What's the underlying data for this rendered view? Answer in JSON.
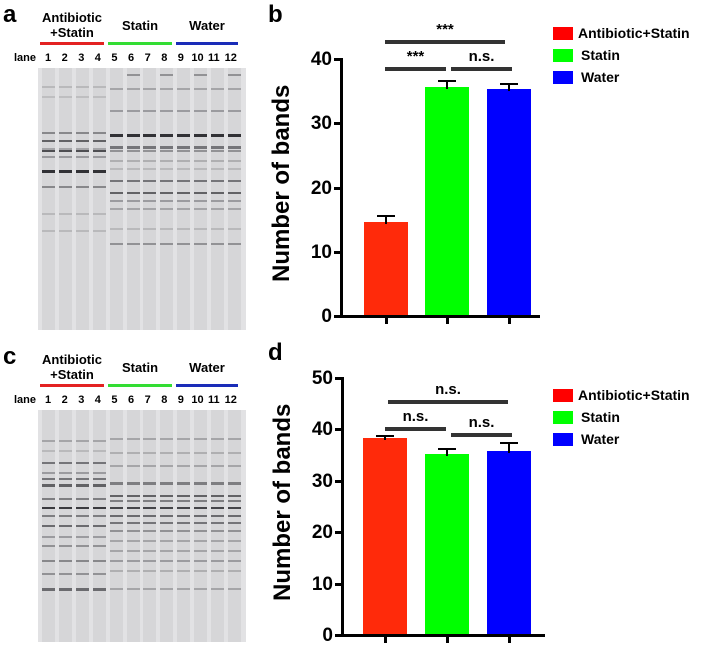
{
  "panels": {
    "a": {
      "letter": "a"
    },
    "b": {
      "letter": "b"
    },
    "c": {
      "letter": "c"
    },
    "d": {
      "letter": "d"
    }
  },
  "gel": {
    "lane_prefix": "lane",
    "groups": [
      {
        "label_line1": "Antibiotic",
        "label_line2": "+Statin",
        "color": "#e32222"
      },
      {
        "label_line1": "",
        "label_line2": "Statin",
        "color": "#33dd33"
      },
      {
        "label_line1": "",
        "label_line2": "Water",
        "color": "#1a2cb8"
      }
    ],
    "lanes": [
      "1",
      "2",
      "3",
      "4",
      "5",
      "6",
      "7",
      "8",
      "9",
      "10",
      "11",
      "12"
    ]
  },
  "legend": {
    "items": [
      {
        "label": "Antibiotic+Statin",
        "color": "#ff0000"
      },
      {
        "label": "Statin",
        "color": "#00ff00"
      },
      {
        "label": "Water",
        "color": "#0000ff"
      }
    ]
  },
  "chart_data": [
    {
      "panel": "b",
      "type": "bar",
      "title": "",
      "xlabel": "",
      "ylabel": "Number of bands",
      "categories": [
        "Antibiotic+Statin",
        "Statin",
        "Water"
      ],
      "values": [
        14.4,
        35.5,
        35.2
      ],
      "errors": [
        1.1,
        1.0,
        0.9
      ],
      "colors": [
        "#ff2a0a",
        "#00ff00",
        "#0000ff"
      ],
      "ylim": [
        0,
        40
      ],
      "yticks": [
        "0",
        "10",
        "20",
        "30",
        "40"
      ],
      "grid": false,
      "legend_position": "right",
      "significance": [
        {
          "from": 0,
          "to": 2,
          "label": "***"
        },
        {
          "from": 0,
          "to": 1,
          "label": "***"
        },
        {
          "from": 1,
          "to": 2,
          "label": "n.s."
        }
      ]
    },
    {
      "panel": "d",
      "type": "bar",
      "title": "",
      "xlabel": "",
      "ylabel": "Number of bands",
      "categories": [
        "Antibiotic+Statin",
        "Statin",
        "Water"
      ],
      "values": [
        38.1,
        35.1,
        35.6
      ],
      "errors": [
        0.6,
        1.0,
        1.7
      ],
      "colors": [
        "#ff2a0a",
        "#00ff00",
        "#0000ff"
      ],
      "ylim": [
        0,
        50
      ],
      "yticks": [
        "0",
        "10",
        "20",
        "30",
        "40",
        "50"
      ],
      "grid": false,
      "legend_position": "right",
      "significance": [
        {
          "from": 0,
          "to": 2,
          "label": "n.s."
        },
        {
          "from": 0,
          "to": 1,
          "label": "n.s."
        },
        {
          "from": 1,
          "to": 2,
          "label": "n.s."
        }
      ]
    }
  ]
}
